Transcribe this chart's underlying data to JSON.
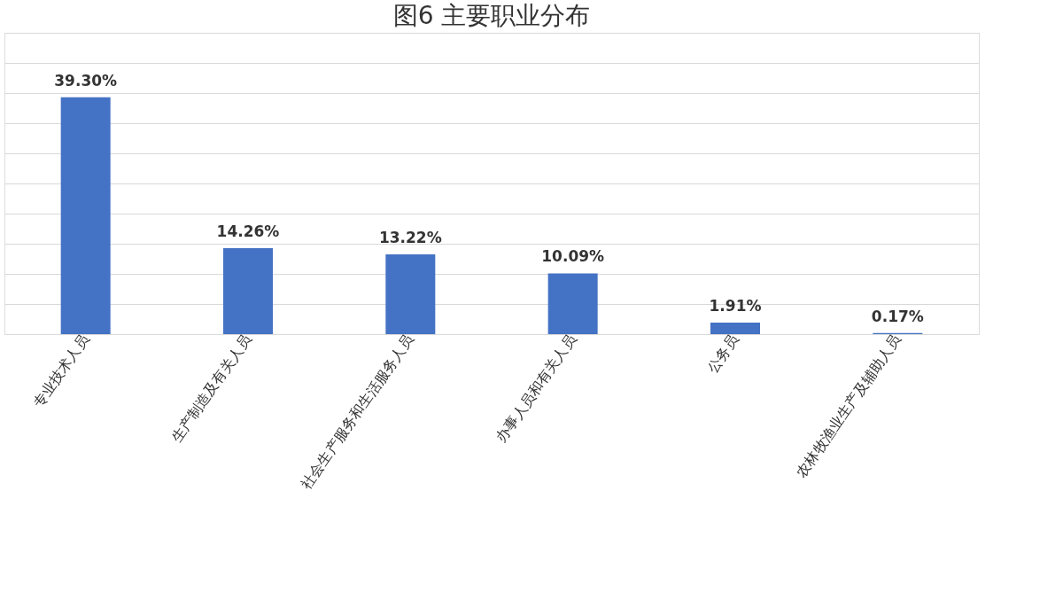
{
  "chart_data": {
    "type": "bar",
    "title": "图6  主要职业分布",
    "categories": [
      "专业技术人员",
      "生产制造及有关人员",
      "社会生产服务和生活服务人员",
      "办事人员和有关人员",
      "公务员",
      "农林牧渔业生产及辅助人员"
    ],
    "values": [
      39.3,
      14.26,
      13.22,
      10.09,
      1.91,
      0.17
    ],
    "value_labels": [
      "39.30%",
      "14.26%",
      "13.22%",
      "10.09%",
      "1.91%",
      "0.17%"
    ],
    "color": "#4472c4",
    "ylim": [
      0,
      50
    ],
    "grid": "y",
    "tick_labels": "x"
  }
}
